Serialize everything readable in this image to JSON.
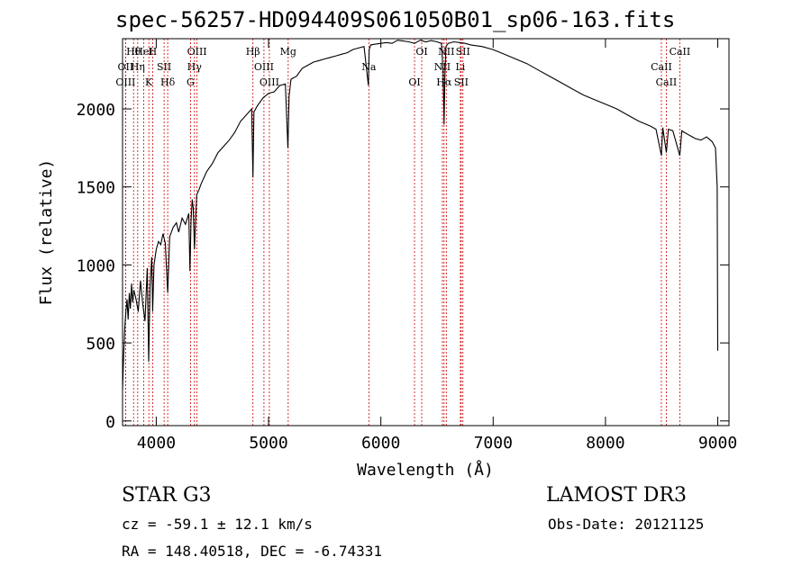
{
  "header": {
    "title": "spec-56257-HD094409S061050B01_sp06-163.fits"
  },
  "info": {
    "object_type": "STAR    G3",
    "survey": "LAMOST DR3",
    "cz": "cz = -59.1 ± 12.1 km/s",
    "obs_date": "Obs-Date: 20121125",
    "ra_dec": "RA = 148.40518, DEC =  -6.74331"
  },
  "chart_data": {
    "type": "line",
    "title": "spec-56257-HD094409S061050B01_sp06-163.fits",
    "xlabel": "Wavelength (Å)",
    "ylabel": "Flux (relative)",
    "xlim": [
      3700,
      9100
    ],
    "ylim": [
      -30,
      2450
    ],
    "xticks": [
      4000,
      5000,
      6000,
      7000,
      8000,
      9000
    ],
    "yticks": [
      0,
      500,
      1000,
      1500,
      2000
    ],
    "series": [
      {
        "name": "flux",
        "x": [
          3700,
          3710,
          3720,
          3730,
          3740,
          3750,
          3760,
          3770,
          3780,
          3790,
          3800,
          3820,
          3840,
          3860,
          3880,
          3900,
          3920,
          3933,
          3945,
          3960,
          3968,
          3980,
          4000,
          4020,
          4040,
          4060,
          4080,
          4102,
          4120,
          4150,
          4180,
          4200,
          4230,
          4260,
          4290,
          4300,
          4310,
          4320,
          4330,
          4340,
          4360,
          4380,
          4400,
          4450,
          4500,
          4550,
          4600,
          4650,
          4700,
          4750,
          4800,
          4850,
          4861,
          4870,
          4900,
          4950,
          5000,
          5050,
          5100,
          5150,
          5172,
          5183,
          5200,
          5250,
          5300,
          5350,
          5400,
          5450,
          5500,
          5550,
          5600,
          5650,
          5700,
          5750,
          5800,
          5850,
          5889,
          5896,
          5910,
          5950,
          6000,
          6050,
          6100,
          6150,
          6200,
          6250,
          6300,
          6350,
          6400,
          6450,
          6500,
          6540,
          6555,
          6563,
          6570,
          6580,
          6600,
          6650,
          6700,
          6750,
          6800,
          6900,
          7000,
          7100,
          7200,
          7300,
          7400,
          7500,
          7600,
          7700,
          7800,
          7900,
          8000,
          8100,
          8200,
          8300,
          8400,
          8450,
          8498,
          8510,
          8542,
          8560,
          8600,
          8662,
          8680,
          8700,
          8750,
          8800,
          8850,
          8900,
          8950,
          8980,
          8995,
          9000
        ],
        "values": [
          200,
          420,
          600,
          700,
          780,
          650,
          820,
          720,
          880,
          760,
          840,
          780,
          700,
          900,
          750,
          640,
          980,
          380,
          860,
          1050,
          700,
          1000,
          1100,
          1150,
          1130,
          1200,
          1140,
          820,
          1180,
          1240,
          1270,
          1210,
          1300,
          1260,
          1330,
          960,
          1280,
          1420,
          1360,
          1100,
          1450,
          1480,
          1520,
          1600,
          1650,
          1720,
          1760,
          1800,
          1850,
          1920,
          1960,
          2000,
          1560,
          1980,
          2020,
          2070,
          2100,
          2110,
          2150,
          2160,
          1750,
          2080,
          2190,
          2210,
          2260,
          2280,
          2300,
          2310,
          2320,
          2330,
          2340,
          2350,
          2360,
          2380,
          2390,
          2400,
          2150,
          2380,
          2410,
          2415,
          2420,
          2425,
          2420,
          2440,
          2435,
          2430,
          2420,
          2440,
          2430,
          2438,
          2430,
          2420,
          2230,
          1900,
          2200,
          2400,
          2420,
          2430,
          2425,
          2420,
          2410,
          2400,
          2380,
          2350,
          2320,
          2290,
          2250,
          2210,
          2170,
          2130,
          2090,
          2060,
          2030,
          2000,
          1960,
          1920,
          1890,
          1870,
          1700,
          1880,
          1720,
          1870,
          1860,
          1700,
          1860,
          1850,
          1830,
          1810,
          1800,
          1820,
          1790,
          1750,
          1500,
          450
        ]
      }
    ],
    "lines": [
      {
        "label": "Hθ",
        "wave": 3798
      },
      {
        "label": "OII",
        "wave": 3727
      },
      {
        "label": "OIII",
        "wave": 3727
      },
      {
        "label": "HeI",
        "wave": 3889
      },
      {
        "label": "Hη",
        "wave": 3835
      },
      {
        "label": "K",
        "wave": 3934
      },
      {
        "label": "H",
        "wave": 3968
      },
      {
        "label": "SII",
        "wave": 4070
      },
      {
        "label": "Hδ",
        "wave": 4102
      },
      {
        "label": "OIII",
        "wave": 4363
      },
      {
        "label": "Hγ",
        "wave": 4340
      },
      {
        "label": "G",
        "wave": 4305
      },
      {
        "label": "Hβ",
        "wave": 4861
      },
      {
        "label": "OIII",
        "wave": 4959
      },
      {
        "label": "OIII",
        "wave": 5007
      },
      {
        "label": "Mg",
        "wave": 5175
      },
      {
        "label": "Na",
        "wave": 5893
      },
      {
        "label": "OI",
        "wave": 6300
      },
      {
        "label": "OI",
        "wave": 6364
      },
      {
        "label": "NII",
        "wave": 6548
      },
      {
        "label": "Hα",
        "wave": 6563
      },
      {
        "label": "NII",
        "wave": 6583
      },
      {
        "label": "Li",
        "wave": 6708
      },
      {
        "label": "SII",
        "wave": 6716
      },
      {
        "label": "SII",
        "wave": 6731
      },
      {
        "label": "CaII",
        "wave": 8498
      },
      {
        "label": "CaII",
        "wave": 8542
      },
      {
        "label": "CaII",
        "wave": 8662
      }
    ]
  }
}
